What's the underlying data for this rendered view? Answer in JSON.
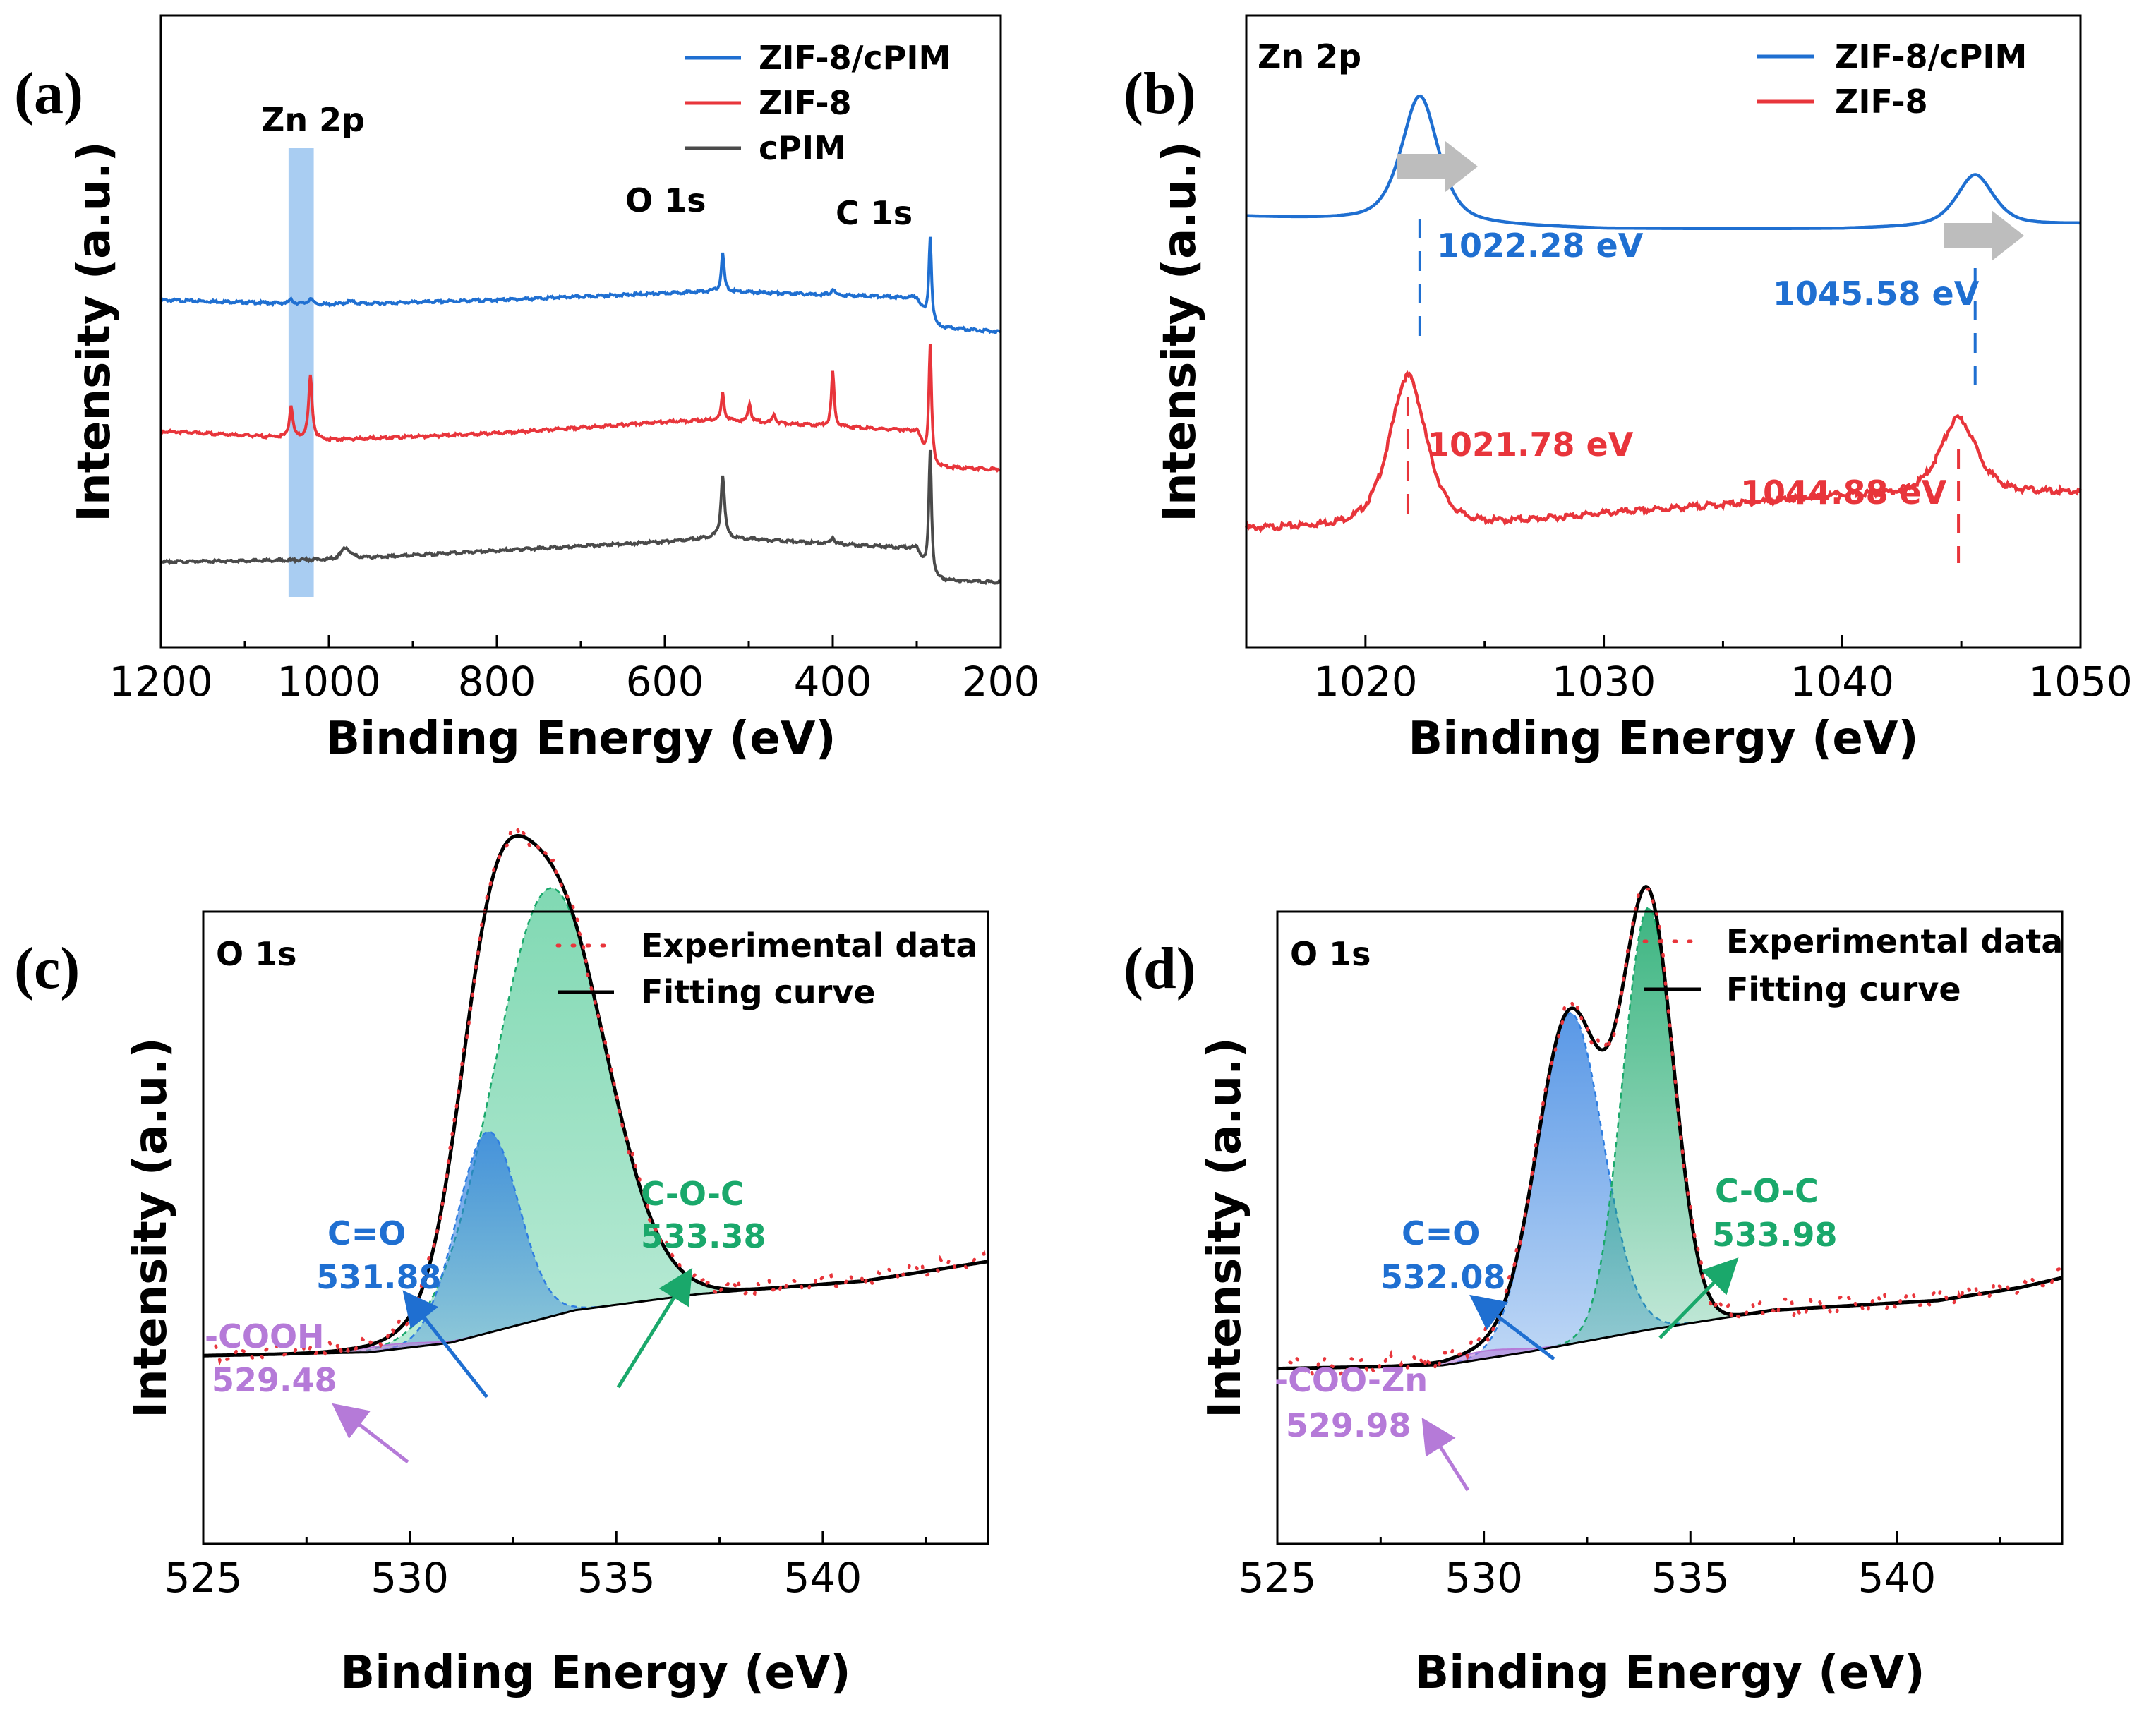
{
  "figure": {
    "colors": {
      "blue": "#1f6fd1",
      "red": "#e8353b",
      "dark": "#4a4a4a",
      "black": "#000000",
      "green": "#1aa86b",
      "purple": "#b57ad8",
      "grey": "#bdbdbd",
      "zn_band": "#a9cdf2"
    }
  },
  "chart_data": [
    {
      "panel": "(a)",
      "type": "line",
      "xlabel": "Binding Energy (eV)",
      "ylabel": "Intensity (a.u.)",
      "xlim": [
        1200,
        200
      ],
      "xticks": [
        "1200",
        "1000",
        "800",
        "600",
        "400",
        "200"
      ],
      "legend": [
        "ZIF-8/cPIM",
        "ZIF-8",
        "cPIM"
      ],
      "annotations": [
        "Zn 2p",
        "O 1s",
        "C 1s"
      ],
      "highlight_band_ev": [
        1048,
        1018
      ],
      "series": [
        {
          "name": "ZIF-8/cPIM",
          "baseline": [
            [
              1200,
              7.7
            ],
            [
              1000,
              7.6
            ],
            [
              800,
              7.7
            ],
            [
              600,
              7.85
            ],
            [
              540,
              7.9
            ],
            [
              300,
              7.75
            ],
            [
              284,
              7.1
            ],
            [
              200,
              7.0
            ]
          ],
          "peaks": [
            [
              1045,
              0.08,
              3
            ],
            [
              1022,
              0.12,
              3
            ],
            [
              975,
              0.06,
              6
            ],
            [
              531,
              0.85,
              2
            ],
            [
              400,
              0.15,
              2
            ],
            [
              284,
              2.0,
              2
            ]
          ]
        },
        {
          "name": "ZIF-8",
          "baseline": [
            [
              1200,
              4.8
            ],
            [
              1000,
              4.6
            ],
            [
              800,
              4.75
            ],
            [
              600,
              5.0
            ],
            [
              540,
              5.05
            ],
            [
              300,
              4.8
            ],
            [
              284,
              4.0
            ],
            [
              200,
              3.95
            ]
          ],
          "peaks": [
            [
              1045,
              0.7,
              2.5
            ],
            [
              1022,
              1.4,
              2.5
            ],
            [
              531,
              0.6,
              2
            ],
            [
              499,
              0.4,
              2
            ],
            [
              470,
              0.2,
              2
            ],
            [
              400,
              1.2,
              2
            ],
            [
              284,
              2.7,
              2
            ]
          ]
        },
        {
          "name": "cPIM",
          "baseline": [
            [
              1200,
              1.9
            ],
            [
              1000,
              1.95
            ],
            [
              800,
              2.15
            ],
            [
              600,
              2.35
            ],
            [
              540,
              2.45
            ],
            [
              300,
              2.2
            ],
            [
              284,
              1.5
            ],
            [
              200,
              1.45
            ]
          ],
          "peaks": [
            [
              980,
              0.25,
              6
            ],
            [
              531,
              1.4,
              2.5
            ],
            [
              400,
              0.15,
              2
            ],
            [
              284,
              2.9,
              2
            ]
          ]
        }
      ]
    },
    {
      "panel": "(b)",
      "type": "line",
      "title": "Zn 2p",
      "xlabel": "Binding Energy (eV)",
      "ylabel": "Intensity (a.u.)",
      "xlim": [
        1015,
        1050
      ],
      "xticks": [
        "1020",
        "1030",
        "1040",
        "1050"
      ],
      "legend": [
        "ZIF-8/cPIM",
        "ZIF-8"
      ],
      "series": [
        {
          "name": "ZIF-8/cPIM",
          "peaks_ev": [
            1022.28,
            1045.58
          ],
          "peak_labels": [
            "1022.28 eV",
            "1045.58 eV"
          ],
          "peak_heights": [
            2.1,
            0.85
          ]
        },
        {
          "name": "ZIF-8",
          "peaks_ev": [
            1021.78,
            1044.88
          ],
          "peak_labels": [
            "1021.78 eV",
            "1044.88 eV"
          ],
          "peak_heights": [
            2.5,
            1.25
          ]
        }
      ]
    },
    {
      "panel": "(c)",
      "type": "area",
      "title": "O 1s",
      "xlabel": "Binding Energy (eV)",
      "ylabel": "Intensity (a.u.)",
      "xlim": [
        525,
        544
      ],
      "xticks": [
        "525",
        "530",
        "535",
        "540"
      ],
      "legend": [
        "Experimental data",
        "Fitting curve"
      ],
      "components": [
        {
          "label": "-COOH",
          "value": "529.48",
          "center": 529.48,
          "height": 0.08,
          "width": 0.9
        },
        {
          "label": "C=O",
          "value": "531.88",
          "center": 531.88,
          "height": 3.1,
          "width": 0.75
        },
        {
          "label": "C-O-C",
          "value": "533.38",
          "center": 533.38,
          "height": 6.6,
          "width": 1.35
        }
      ]
    },
    {
      "panel": "(d)",
      "type": "area",
      "title": "O 1s",
      "xlabel": "Binding Energy (eV)",
      "ylabel": "Intensity (a.u.)",
      "xlim": [
        525,
        544
      ],
      "xticks": [
        "525",
        "530",
        "535",
        "540"
      ],
      "legend": [
        "Experimental data",
        "Fitting curve"
      ],
      "components": [
        {
          "label": "-COO-Zn",
          "value": "529.98",
          "center": 529.98,
          "height": 0.12,
          "width": 0.8
        },
        {
          "label": "C=O",
          "value": "532.08",
          "center": 532.08,
          "height": 5.1,
          "width": 0.8
        },
        {
          "label": "C-O-C",
          "value": "533.98",
          "center": 533.98,
          "height": 6.5,
          "width": 0.62
        }
      ]
    }
  ]
}
